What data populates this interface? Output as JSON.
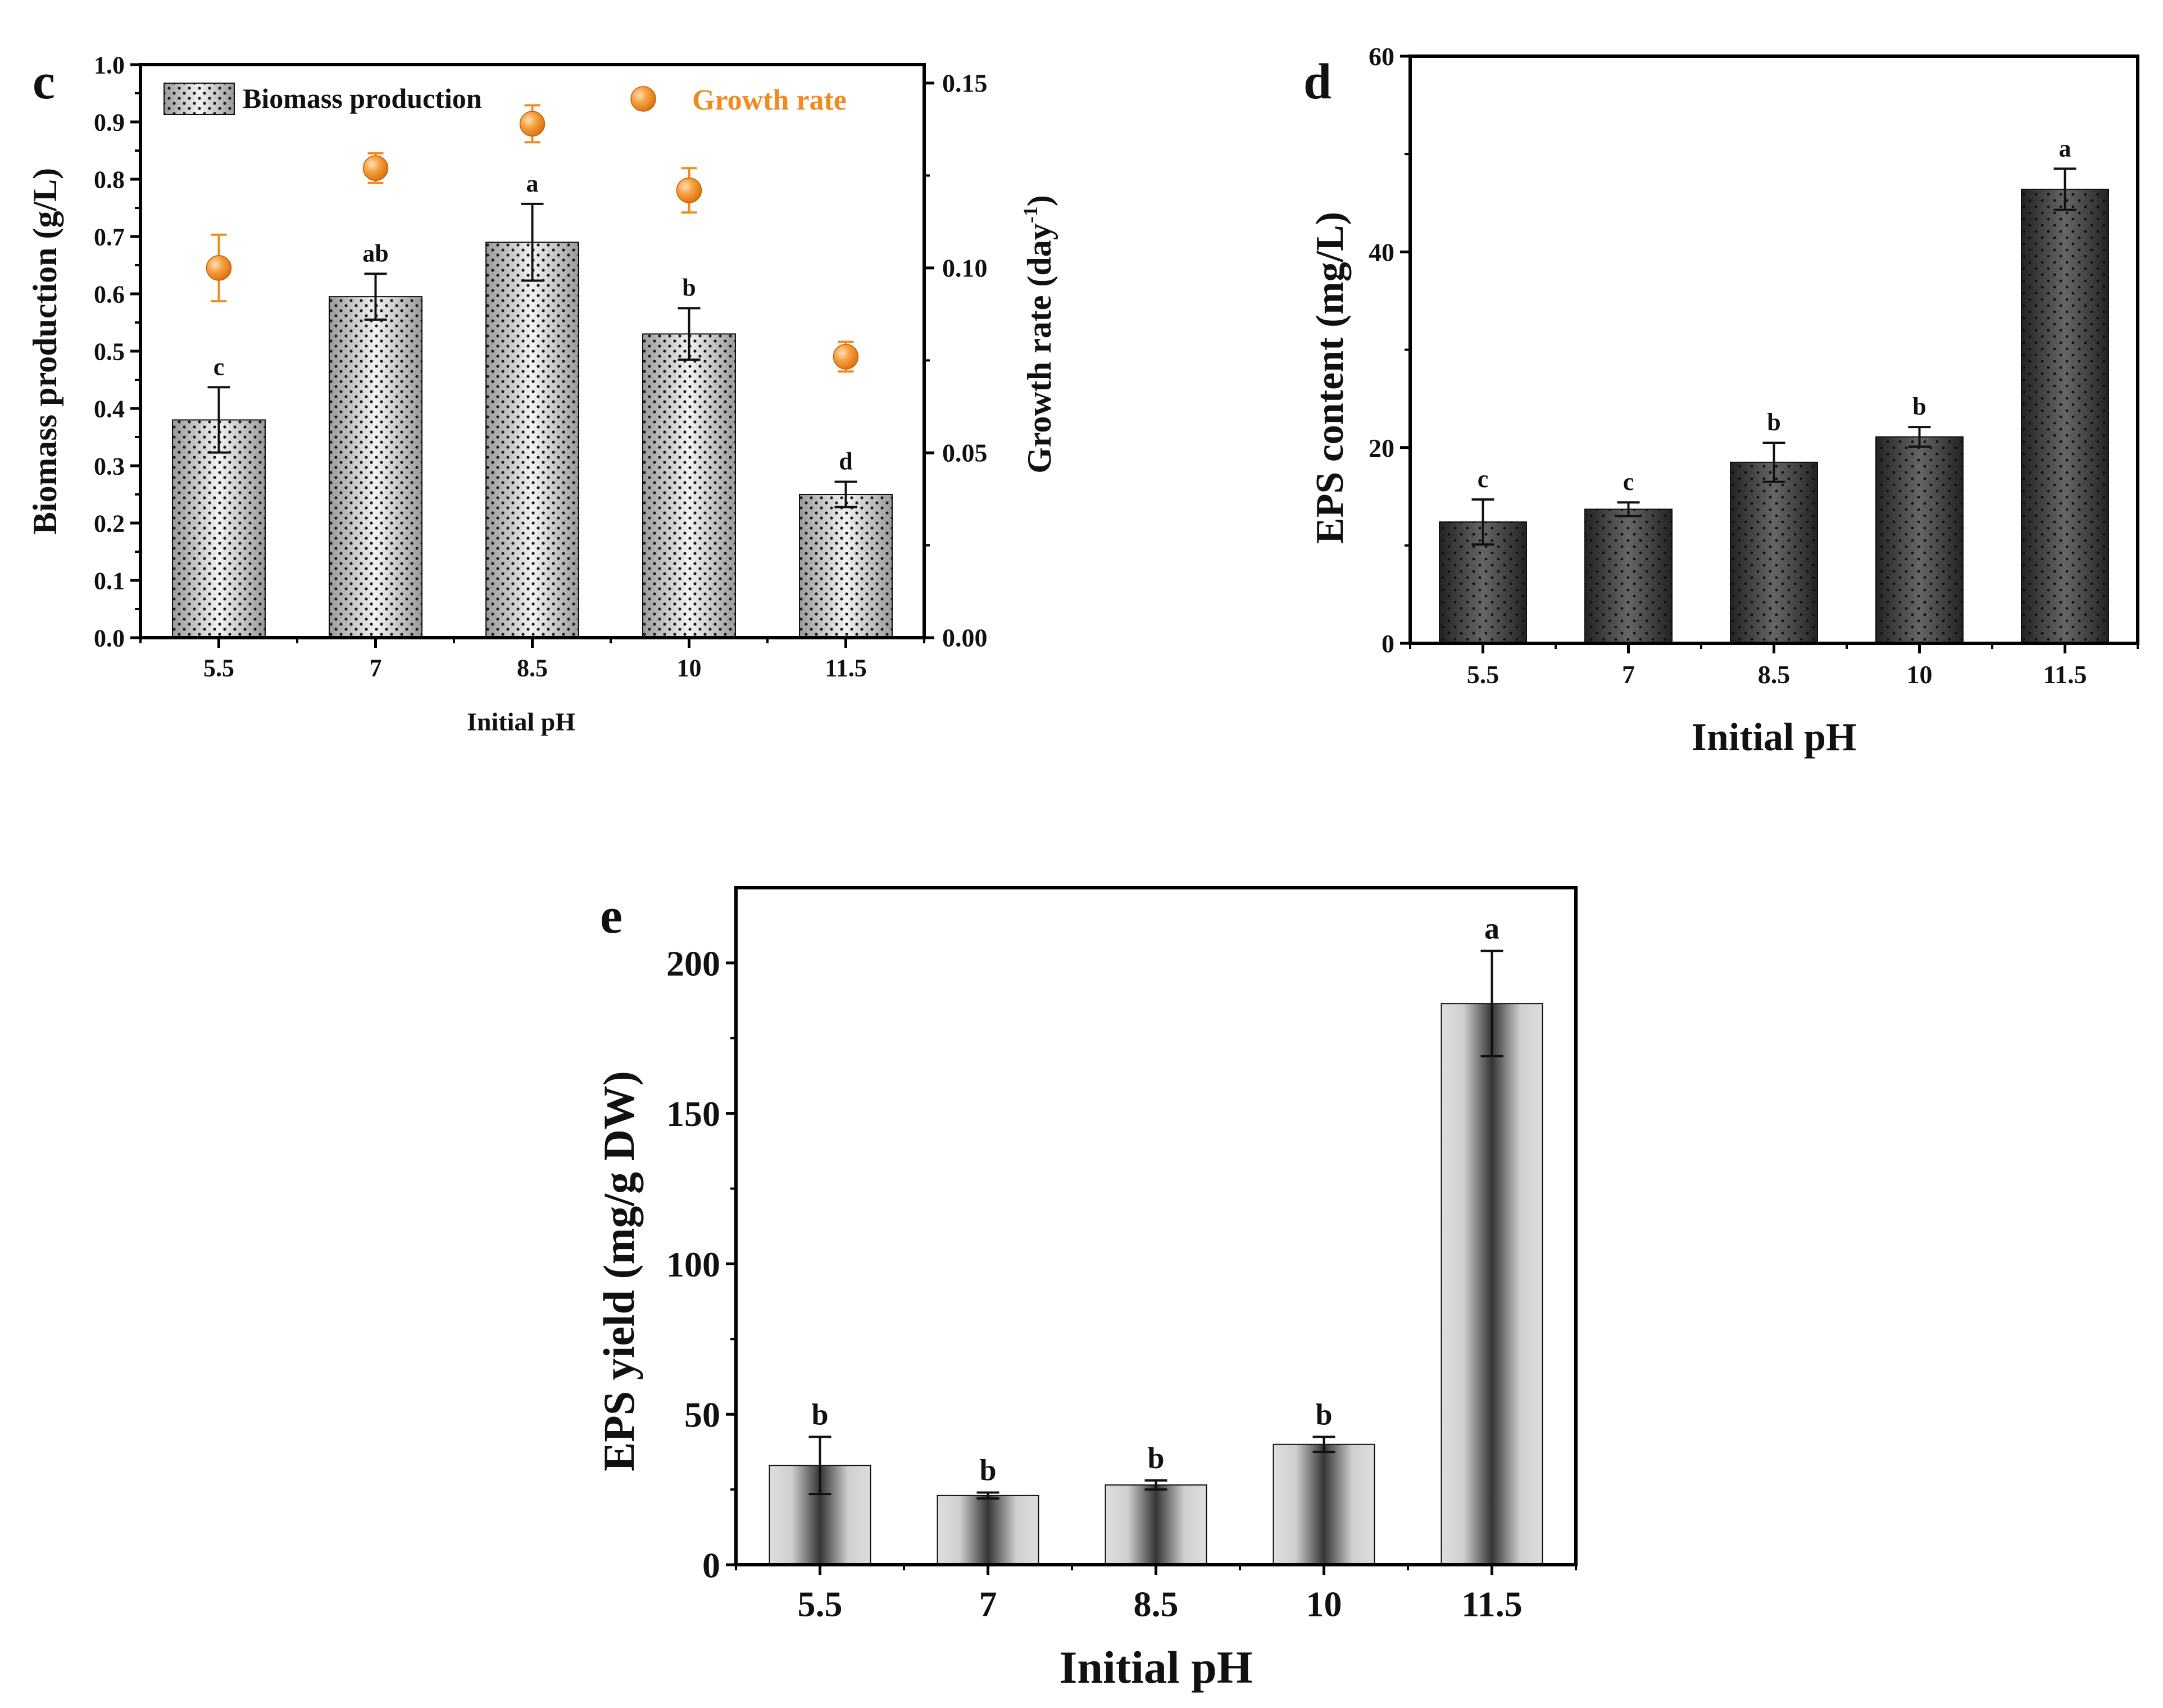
{
  "chart_data": [
    {
      "id": "c",
      "type": "bar",
      "panel_label": "c",
      "title": "",
      "xlabel": "Initial pH",
      "ylabel": "Biomass production (g/L)",
      "y2label_main": "Growth rate (day",
      "y2label_sup": "-1",
      "y2label_end": ")",
      "categories": [
        "5.5",
        "7",
        "8.5",
        "10",
        "11.5"
      ],
      "ylim": [
        0,
        1.0
      ],
      "yticks": [
        "0.0",
        "0.1",
        "0.2",
        "0.3",
        "0.4",
        "0.5",
        "0.6",
        "0.7",
        "0.8",
        "0.9",
        "1.0"
      ],
      "y2lim": [
        0,
        0.15
      ],
      "y2ticks": [
        "0.00",
        "0.05",
        "0.10",
        "0.15"
      ],
      "series": [
        {
          "name": "Biomass production",
          "type": "bar",
          "values": [
            0.38,
            0.595,
            0.69,
            0.53,
            0.25
          ],
          "errors": [
            0.057,
            0.04,
            0.067,
            0.045,
            0.022
          ],
          "letters": [
            "c",
            "ab",
            "a",
            "b",
            "d"
          ]
        },
        {
          "name": "Growth rate",
          "type": "scatter",
          "axis": "y2",
          "color": "#f28a1e",
          "values": [
            0.1,
            0.127,
            0.139,
            0.121,
            0.076
          ],
          "errors": [
            0.009,
            0.004,
            0.005,
            0.006,
            0.004
          ]
        }
      ],
      "legend": {
        "position": "top",
        "bar_label": "Biomass production",
        "point_label": "Growth rate"
      }
    },
    {
      "id": "d",
      "type": "bar",
      "panel_label": "d",
      "title": "",
      "xlabel": "Initial pH",
      "ylabel": "EPS content (mg/L)",
      "categories": [
        "5.5",
        "7",
        "8.5",
        "10",
        "11.5"
      ],
      "ylim": [
        0,
        60
      ],
      "yticks": [
        "0",
        "20",
        "40",
        "60"
      ],
      "series": [
        {
          "name": "EPS content",
          "values": [
            12.4,
            13.7,
            18.5,
            21.1,
            46.4
          ],
          "errors": [
            2.3,
            0.7,
            2.0,
            1.0,
            2.1
          ],
          "letters": [
            "c",
            "c",
            "b",
            "b",
            "a"
          ]
        }
      ]
    },
    {
      "id": "e",
      "type": "bar",
      "panel_label": "e",
      "title": "",
      "xlabel": "Initial pH",
      "ylabel": "EPS yield (mg/g DW)",
      "categories": [
        "5.5",
        "7",
        "8.5",
        "10",
        "11.5"
      ],
      "ylim": [
        0,
        225
      ],
      "yticks": [
        "0",
        "50",
        "100",
        "150",
        "200"
      ],
      "series": [
        {
          "name": "EPS yield",
          "values": [
            33,
            23,
            26.5,
            40,
            186.5
          ],
          "errors": [
            9.5,
            1.0,
            1.5,
            2.5,
            17.5
          ],
          "letters": [
            "b",
            "b",
            "b",
            "b",
            "a"
          ]
        }
      ]
    }
  ]
}
